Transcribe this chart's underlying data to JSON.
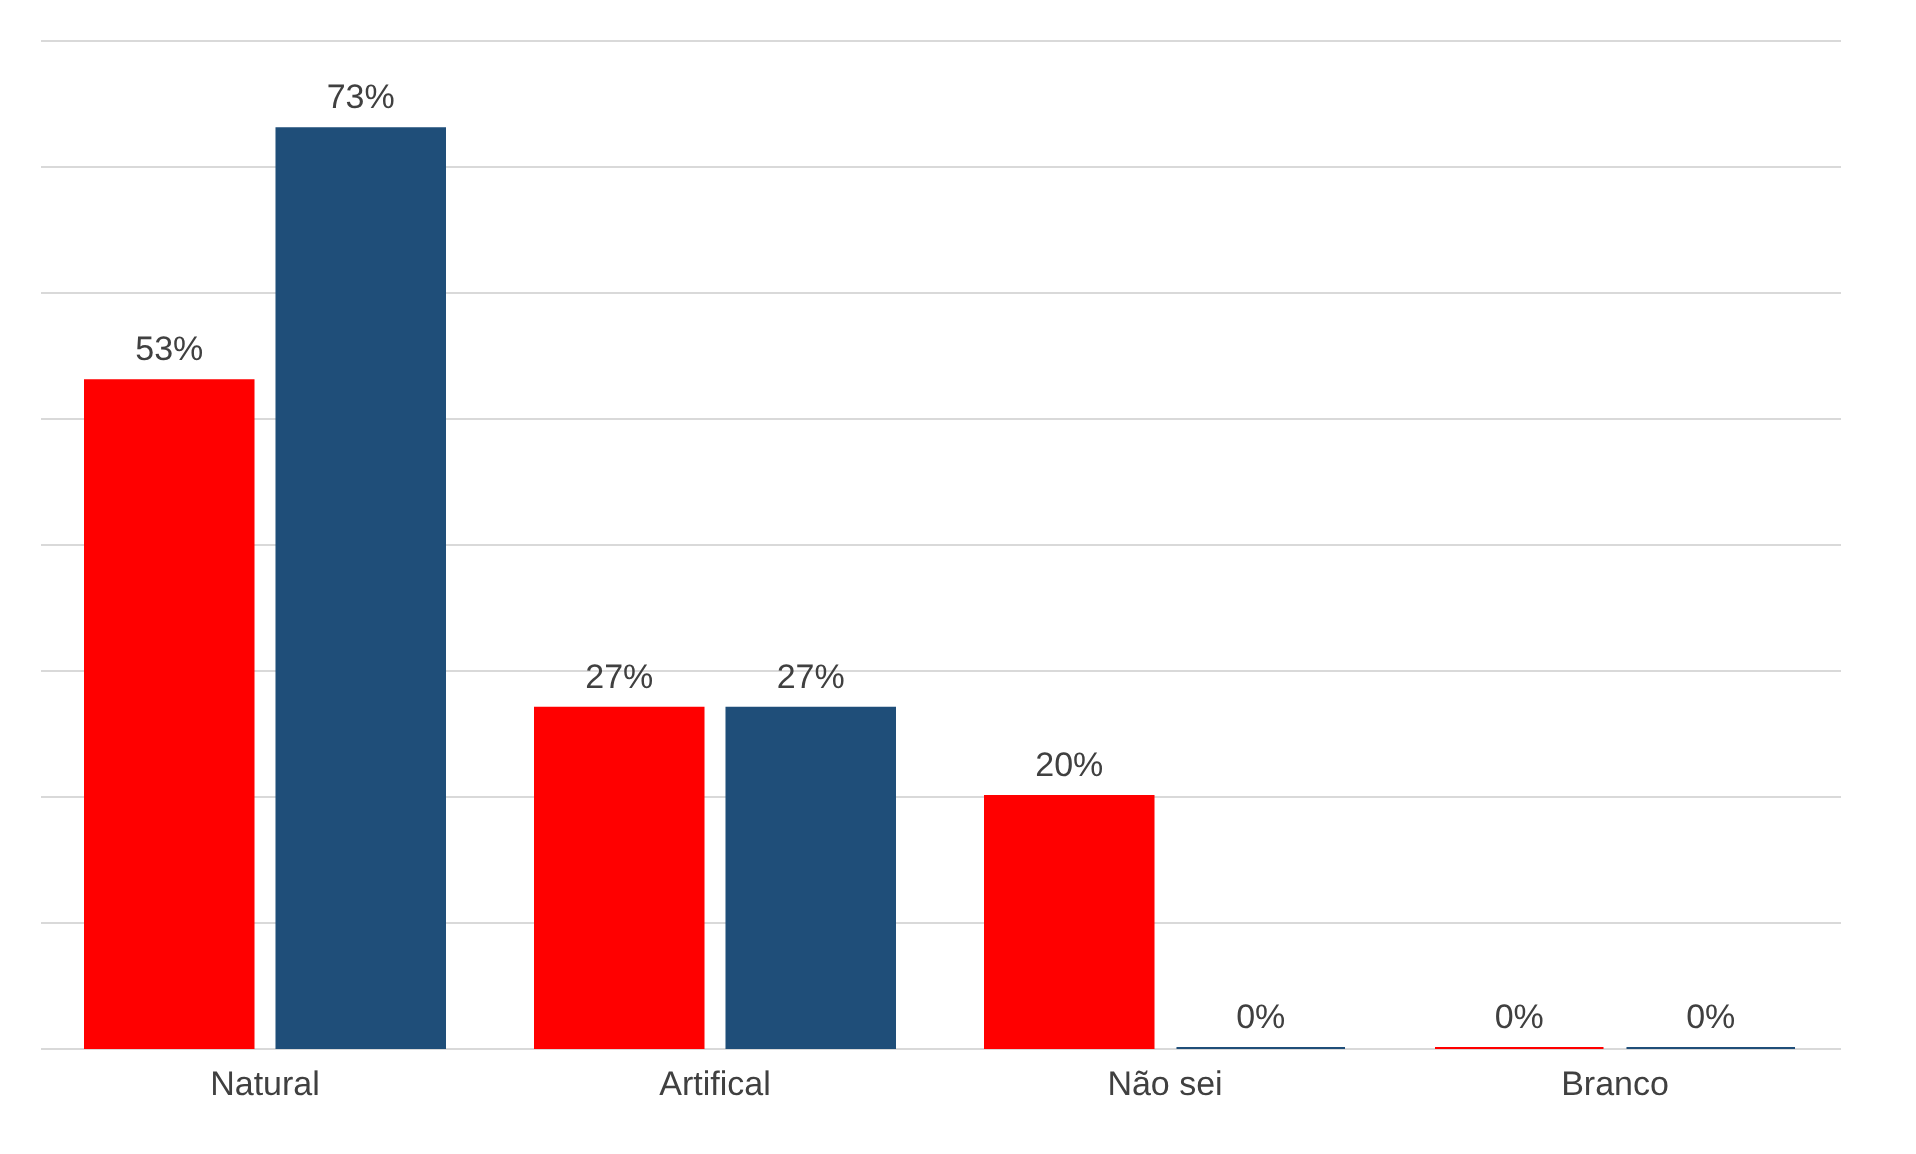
{
  "chart_data": {
    "type": "bar",
    "categories": [
      "Natural",
      "Artifical",
      "Não sei",
      "Branco"
    ],
    "series": [
      {
        "color": "#ff0000",
        "values": [
          53,
          27,
          20,
          0
        ],
        "value_labels": [
          "53%",
          "27%",
          "20%",
          "0%"
        ]
      },
      {
        "color": "#1f4e79",
        "values": [
          73,
          27,
          0,
          0
        ],
        "value_labels": [
          "73%",
          "27%",
          "0%",
          "0%"
        ]
      }
    ],
    "ylim": [
      0,
      80
    ],
    "yticks": [
      {
        "value": 0,
        "label": null
      },
      {
        "value": 10,
        "label": null
      },
      {
        "value": 20,
        "label": null
      },
      {
        "value": 30,
        "label": null
      },
      {
        "value": 40,
        "label": null
      },
      {
        "value": 50,
        "label": null
      },
      {
        "value": 60,
        "label": null
      },
      {
        "value": 70,
        "label": null
      },
      {
        "value": 80,
        "label": null
      }
    ],
    "grid": "y",
    "tick_labels": "x",
    "legend": false
  }
}
